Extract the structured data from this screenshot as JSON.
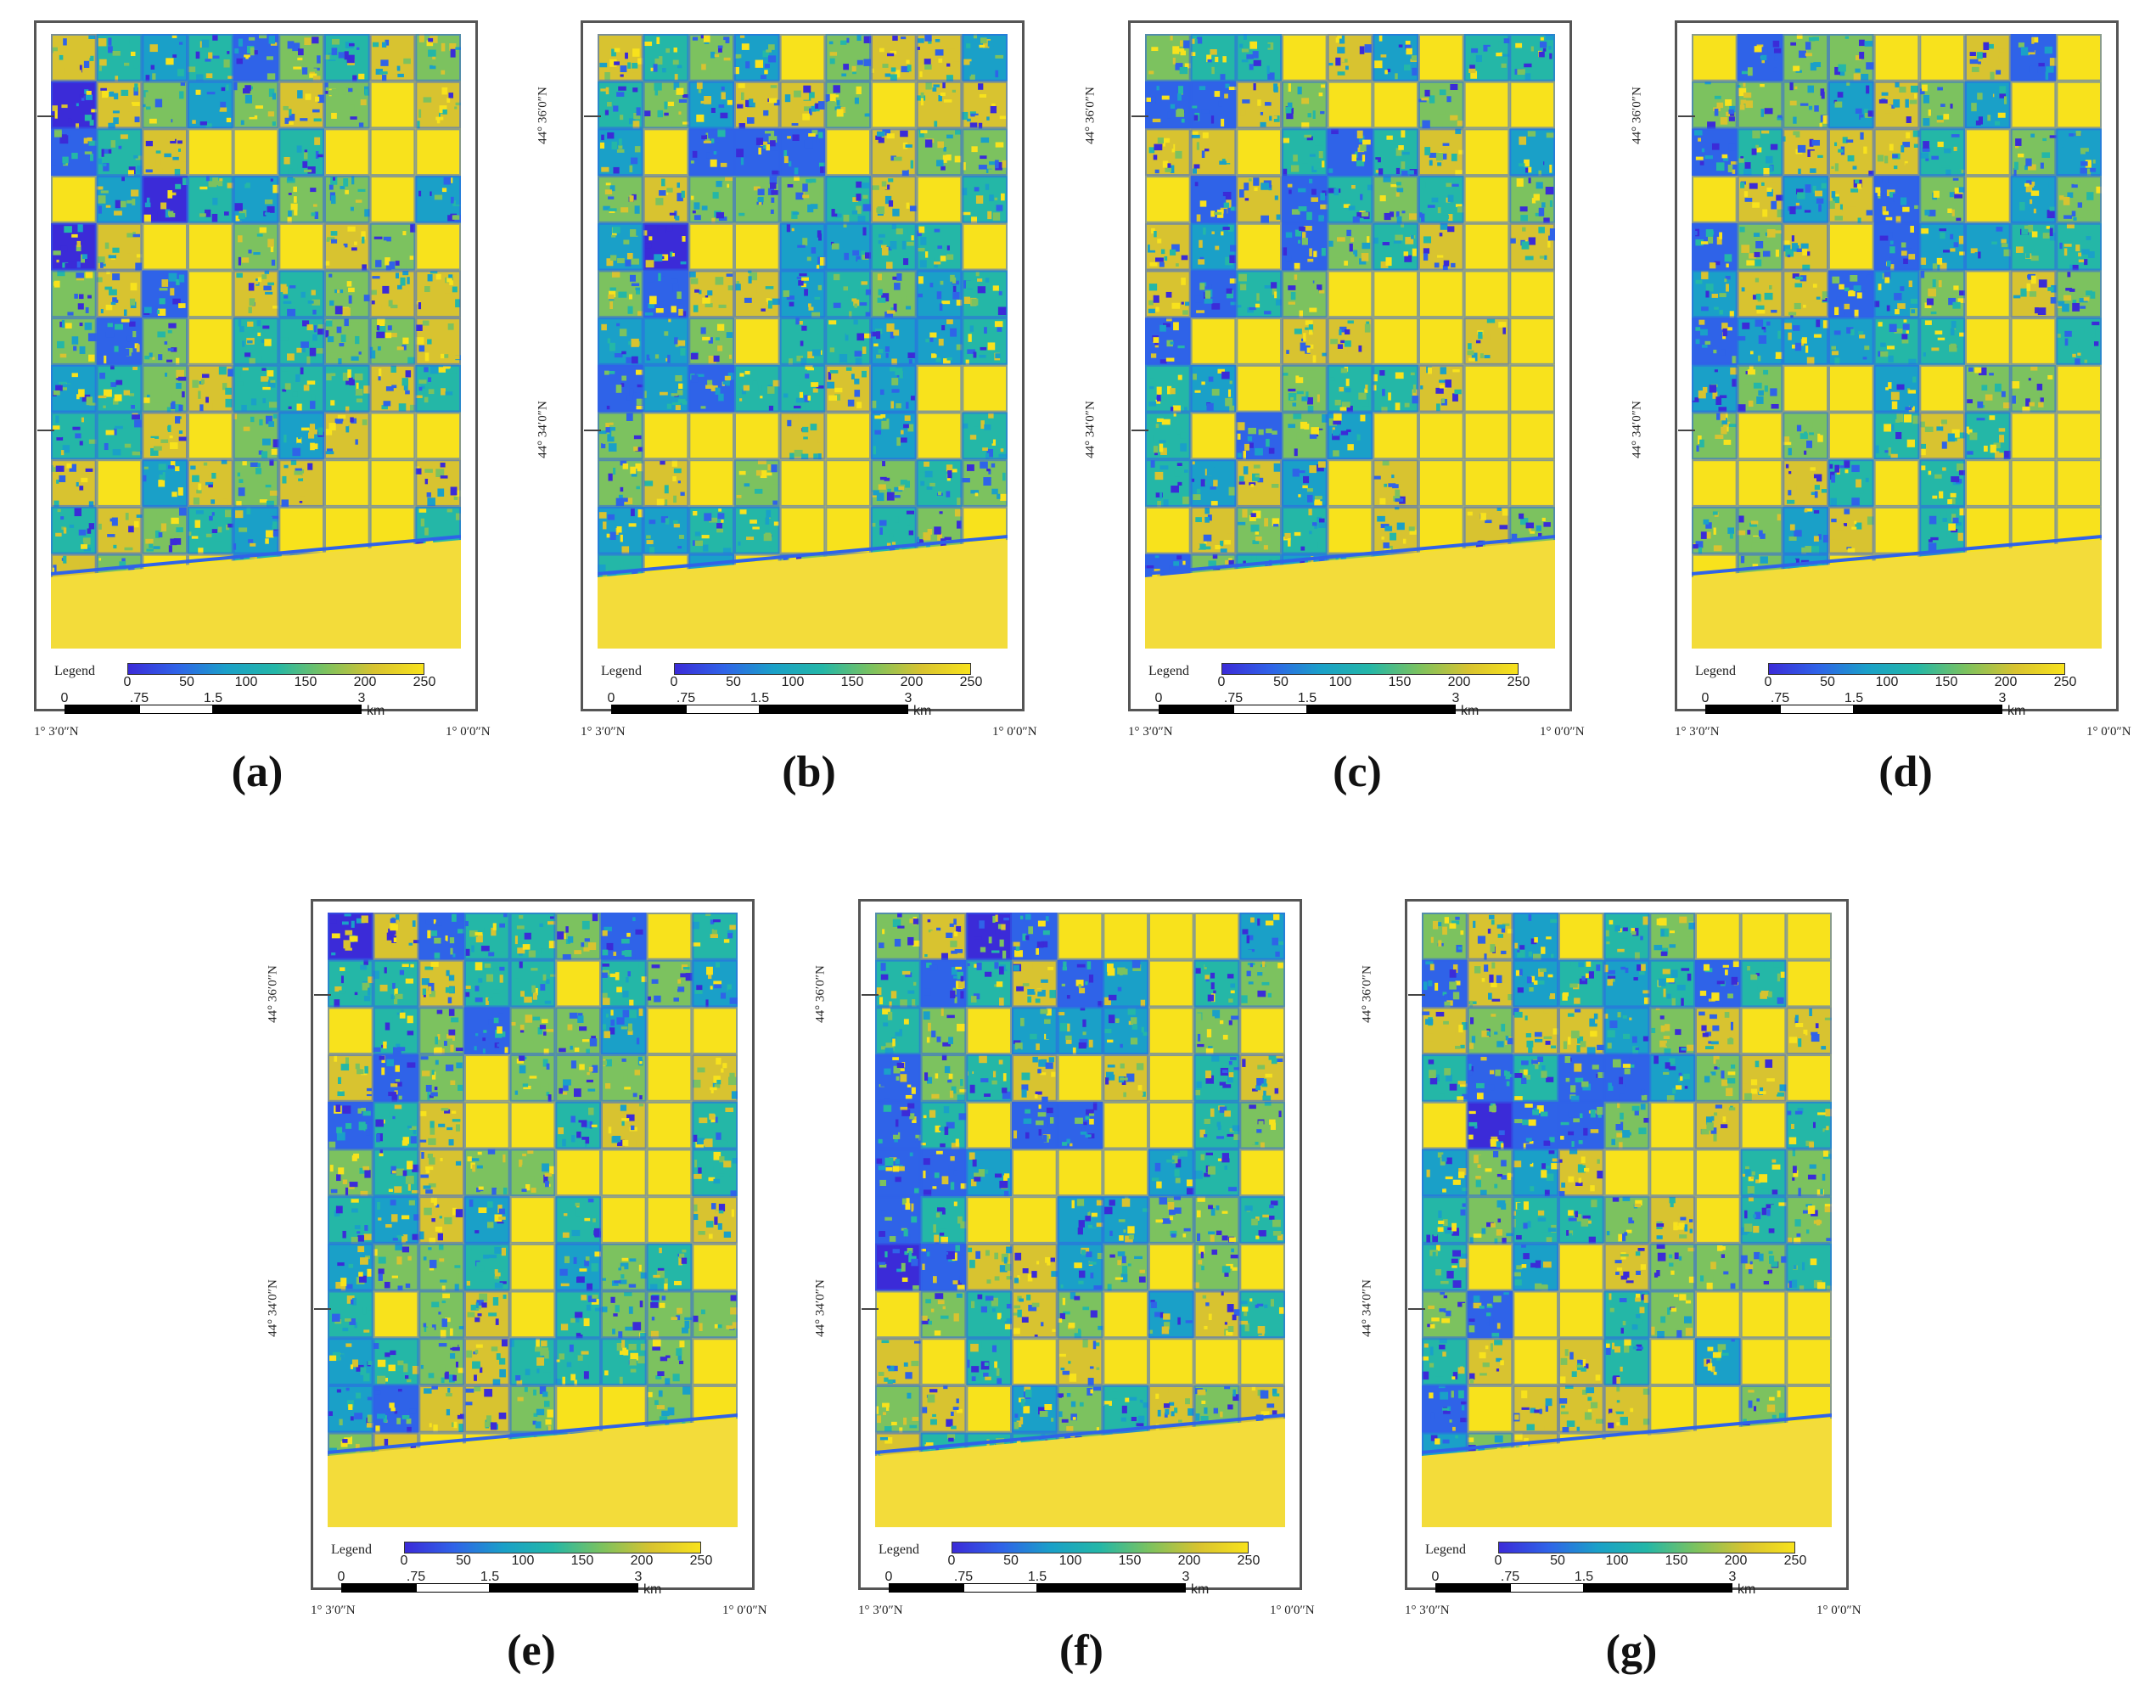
{
  "figure": {
    "colorscale": [
      "#3b2bd8",
      "#2f63e8",
      "#1aa0c8",
      "#24b7a7",
      "#7cc25f",
      "#d8c330",
      "#f8e21c"
    ],
    "panels": [
      {
        "caption": "(a)",
        "seed": 11
      },
      {
        "caption": "(b)",
        "seed": 23
      },
      {
        "caption": "(c)",
        "seed": 37
      },
      {
        "caption": "(d)",
        "seed": 41
      },
      {
        "caption": "(e)",
        "seed": 53
      },
      {
        "caption": "(f)",
        "seed": 67
      },
      {
        "caption": "(g)",
        "seed": 79
      }
    ],
    "common": {
      "lat_labels": [
        "44° 36′0″N",
        "44° 34′0″N"
      ],
      "lon_left": "1° 3′0″N",
      "lon_right": "1° 0′0″N",
      "legend_title": "Legend",
      "colorbar_ticks": [
        "0",
        "50",
        "100",
        "150",
        "200",
        "250"
      ],
      "scale_ticks": [
        "0",
        ".75",
        "1.5",
        "3"
      ],
      "scale_unit": "km"
    }
  }
}
